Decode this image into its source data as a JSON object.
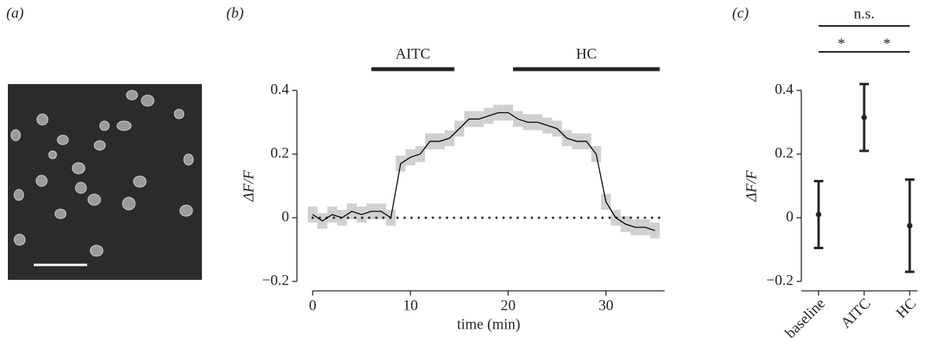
{
  "panels": [
    "(a)",
    "(b)",
    "(c)"
  ],
  "chart_data": [
    {
      "type": "line",
      "x_label": "time (min)",
      "y_label": "ΔF/F",
      "x": [
        0,
        1,
        2,
        3,
        4,
        5,
        6,
        7,
        8,
        9,
        10,
        11,
        12,
        13,
        14,
        15,
        16,
        17,
        18,
        19,
        20,
        21,
        22,
        23,
        24,
        25,
        26,
        27,
        28,
        29,
        30,
        31,
        32,
        33,
        34,
        35
      ],
      "series": [
        {
          "color": "#000000",
          "values": [
            0.01,
            -0.01,
            0.01,
            0.0,
            0.02,
            0.01,
            0.02,
            0.02,
            0.0,
            0.17,
            0.19,
            0.2,
            0.24,
            0.24,
            0.25,
            0.28,
            0.31,
            0.31,
            0.32,
            0.33,
            0.33,
            0.31,
            0.3,
            0.3,
            0.29,
            0.28,
            0.25,
            0.24,
            0.24,
            0.2,
            0.05,
            0.0,
            -0.02,
            -0.03,
            -0.03,
            -0.04
          ],
          "errors": [
            0.025,
            0.025,
            0.025,
            0.025,
            0.025,
            0.025,
            0.025,
            0.025,
            0.025,
            0.025,
            0.025,
            0.025,
            0.025,
            0.025,
            0.025,
            0.025,
            0.025,
            0.025,
            0.025,
            0.025,
            0.025,
            0.025,
            0.025,
            0.025,
            0.025,
            0.025,
            0.025,
            0.025,
            0.025,
            0.025,
            0.025,
            0.025,
            0.025,
            0.025,
            0.025,
            0.025
          ],
          "error_color": "#d0d0d0"
        }
      ],
      "reference_line": 0,
      "stimuli": [
        {
          "label": "AITC",
          "start": 6,
          "end": 14.5
        },
        {
          "label": "HC",
          "start": 20.5,
          "end": 35.5
        }
      ],
      "xlim": [
        0,
        36
      ],
      "xticks": [
        0,
        10,
        20,
        30
      ],
      "ylim": [
        -0.2,
        0.4
      ],
      "yticks": [
        {
          "value": -0.2,
          "label": "−0.2"
        },
        0,
        0.2,
        0.4
      ]
    },
    {
      "type": "errorbar",
      "y_label": "ΔF/F",
      "categories": [
        "baseline",
        "AITC",
        "HC"
      ],
      "values": [
        0.01,
        0.315,
        -0.025
      ],
      "errors": [
        0.105,
        0.105,
        0.145
      ],
      "color": "#222222",
      "significance": [
        {
          "label": "*",
          "from": 0,
          "to": 1
        },
        {
          "label": "*",
          "from": 1,
          "to": 2
        },
        {
          "label": "n.s.",
          "from": 0,
          "to": 2
        }
      ],
      "ylim": [
        -0.2,
        0.4
      ],
      "yticks": [
        {
          "value": -0.2,
          "label": "−0.2"
        },
        0,
        0.2,
        0.4
      ]
    }
  ]
}
